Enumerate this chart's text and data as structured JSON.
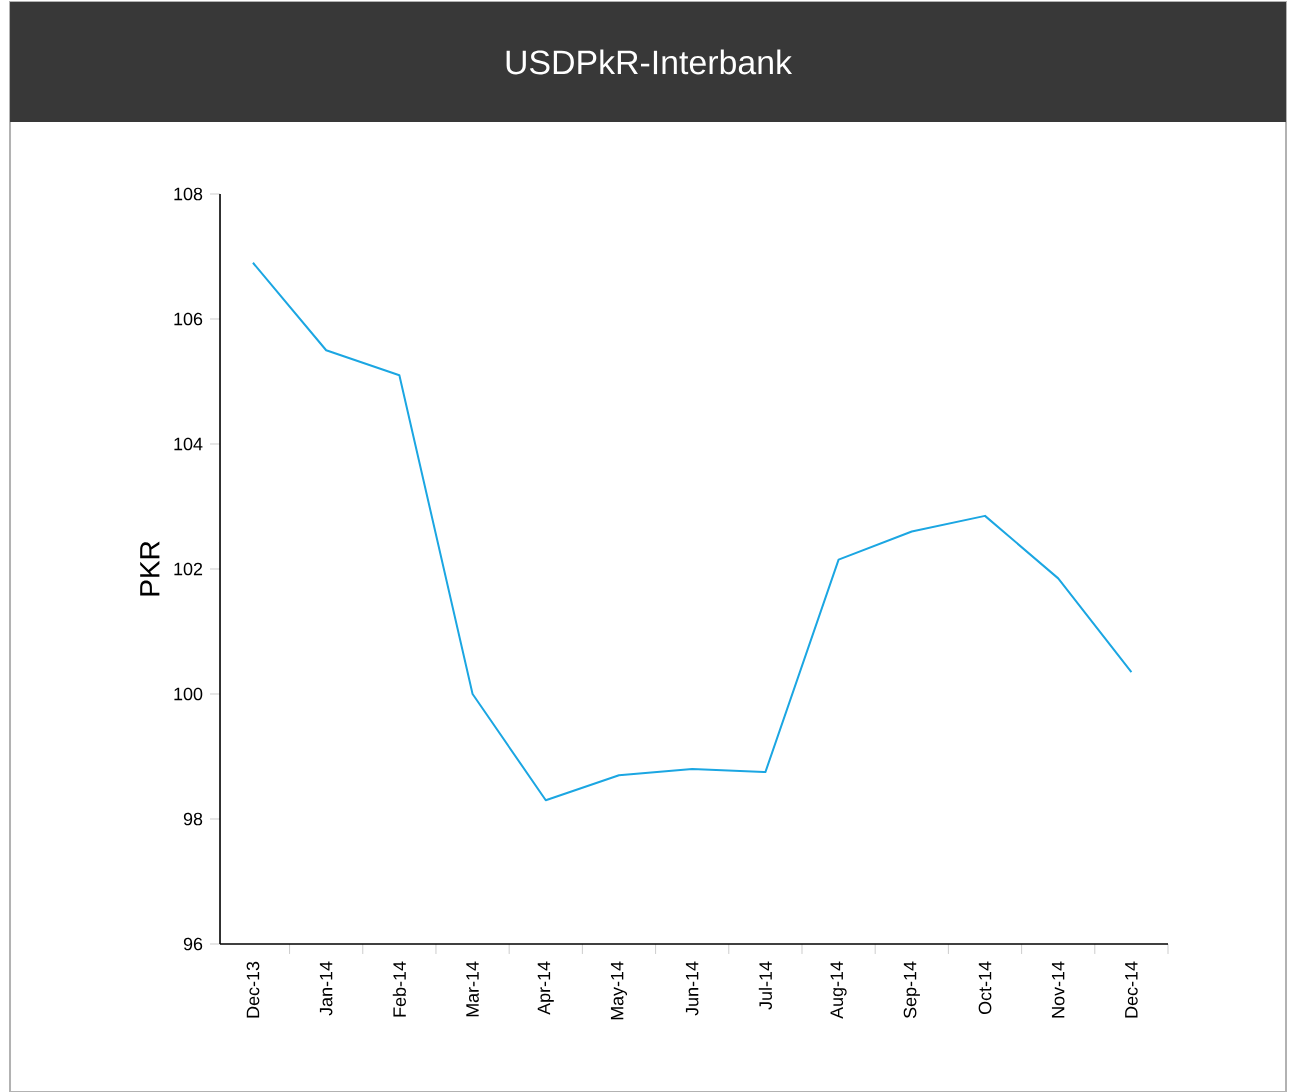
{
  "chart_data": {
    "type": "line",
    "title": "USDPkR-Interbank",
    "ylabel": "PKR",
    "categories": [
      "Dec-13",
      "Jan-14",
      "Feb-14",
      "Mar-14",
      "Apr-14",
      "May-14",
      "Jun-14",
      "Jul-14",
      "Aug-14",
      "Sep-14",
      "Oct-14",
      "Nov-14",
      "Dec-14"
    ],
    "series": [
      {
        "color": "#1ba6e2",
        "values": [
          106.9,
          105.5,
          105.1,
          100.0,
          98.3,
          98.7,
          98.8,
          98.75,
          102.15,
          102.6,
          102.85,
          101.85,
          100.35
        ]
      }
    ],
    "ylim": [
      96,
      108
    ],
    "yticks": [
      96,
      98,
      100,
      102,
      104,
      106,
      108
    ],
    "grid": false,
    "marker": "none",
    "line_style": "solid"
  }
}
